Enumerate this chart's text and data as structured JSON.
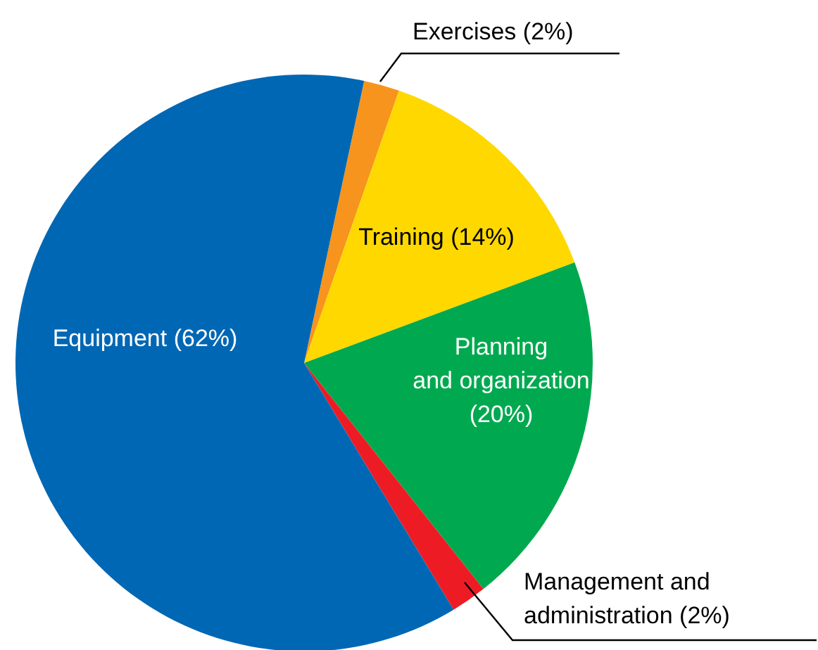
{
  "chart_data": {
    "type": "pie",
    "categories": [
      "Exercises (2%)",
      "Training (14%)",
      "Planning and organization (20%)",
      "Management and administration (2%)",
      "Equipment (62%)"
    ],
    "values": [
      2,
      14,
      20,
      2,
      62
    ],
    "colors": [
      "#f7941d",
      "#ffd800",
      "#00a94f",
      "#ed1c24",
      "#0067b4"
    ]
  }
}
